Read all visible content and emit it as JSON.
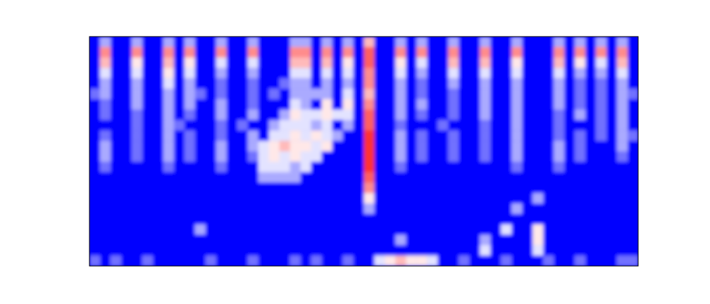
{
  "chart_data": {
    "type": "heatmap",
    "tick_labels": false,
    "zlim": [
      0,
      9
    ],
    "cells": [
      [
        0,
        3,
        0,
        0,
        3,
        0,
        0,
        3,
        0,
        3,
        0,
        0,
        3,
        0,
        0,
        3,
        0,
        0,
        0,
        3,
        3,
        0,
        3,
        0,
        3,
        0,
        6,
        0,
        0,
        3,
        0,
        3,
        0,
        0,
        3,
        0,
        0,
        3,
        0,
        0,
        3,
        0,
        0,
        0,
        3,
        0,
        3,
        0,
        3,
        0,
        3,
        0
      ],
      [
        0,
        7,
        0,
        0,
        7,
        0,
        0,
        7,
        0,
        7,
        0,
        0,
        7,
        0,
        0,
        7,
        0,
        0,
        0,
        7,
        7,
        0,
        7,
        0,
        7,
        0,
        8,
        0,
        0,
        7,
        0,
        7,
        0,
        0,
        7,
        0,
        0,
        7,
        0,
        0,
        7,
        0,
        0,
        0,
        7,
        0,
        7,
        0,
        7,
        0,
        7,
        0
      ],
      [
        0,
        6,
        0,
        0,
        5,
        0,
        0,
        6,
        0,
        5,
        0,
        0,
        4,
        0,
        0,
        4,
        0,
        0,
        0,
        6,
        6,
        0,
        6,
        0,
        5,
        0,
        8,
        0,
        0,
        5,
        0,
        4,
        0,
        0,
        6,
        0,
        0,
        6,
        0,
        0,
        5,
        0,
        0,
        0,
        6,
        0,
        5,
        0,
        4,
        0,
        6,
        0
      ],
      [
        0,
        4,
        0,
        0,
        4,
        0,
        0,
        5,
        0,
        4,
        0,
        0,
        3,
        0,
        0,
        3,
        0,
        0,
        0,
        4,
        4,
        0,
        4,
        0,
        4,
        0,
        7,
        0,
        0,
        4,
        0,
        3,
        0,
        0,
        4,
        0,
        0,
        4,
        0,
        0,
        4,
        0,
        0,
        0,
        4,
        0,
        3,
        0,
        3,
        0,
        4,
        0
      ],
      [
        0,
        3,
        0,
        0,
        3,
        0,
        0,
        4,
        0,
        3,
        0,
        0,
        2,
        0,
        0,
        2,
        0,
        0,
        2,
        3,
        3,
        0,
        3,
        0,
        3,
        0,
        7,
        0,
        0,
        3,
        0,
        2,
        0,
        0,
        3,
        0,
        0,
        3,
        0,
        0,
        3,
        0,
        0,
        0,
        3,
        0,
        2,
        0,
        2,
        0,
        3,
        0
      ],
      [
        2,
        3,
        0,
        0,
        3,
        0,
        0,
        3,
        0,
        3,
        2,
        0,
        2,
        0,
        0,
        2,
        0,
        2,
        0,
        3,
        3,
        3,
        3,
        0,
        4,
        0,
        6,
        0,
        0,
        3,
        0,
        2,
        0,
        0,
        2,
        0,
        0,
        3,
        0,
        0,
        3,
        0,
        0,
        0,
        3,
        0,
        2,
        0,
        2,
        0,
        3,
        2
      ],
      [
        0,
        2,
        0,
        0,
        3,
        0,
        0,
        3,
        0,
        3,
        0,
        0,
        3,
        0,
        0,
        2,
        0,
        0,
        0,
        4,
        3,
        0,
        5,
        0,
        5,
        0,
        7,
        0,
        0,
        3,
        0,
        3,
        0,
        0,
        2,
        0,
        0,
        3,
        0,
        0,
        3,
        0,
        0,
        0,
        3,
        0,
        2,
        0,
        2,
        0,
        3,
        0
      ],
      [
        0,
        2,
        0,
        0,
        2,
        0,
        0,
        3,
        0,
        2,
        0,
        0,
        3,
        0,
        0,
        3,
        0,
        0,
        3,
        5,
        4,
        4,
        5,
        4,
        4,
        0,
        8,
        0,
        0,
        3,
        0,
        2,
        0,
        0,
        2,
        0,
        0,
        3,
        0,
        0,
        3,
        0,
        0,
        0,
        2,
        0,
        3,
        0,
        2,
        0,
        3,
        0
      ],
      [
        0,
        0,
        0,
        0,
        2,
        0,
        0,
        3,
        2,
        0,
        0,
        0,
        2,
        0,
        2,
        0,
        0,
        3,
        4,
        4,
        4,
        3,
        4,
        0,
        3,
        0,
        8,
        0,
        0,
        2,
        0,
        0,
        0,
        2,
        0,
        0,
        0,
        2,
        0,
        0,
        3,
        0,
        0,
        0,
        2,
        0,
        0,
        0,
        2,
        0,
        3,
        0
      ],
      [
        0,
        2,
        0,
        0,
        2,
        0,
        0,
        3,
        0,
        2,
        0,
        0,
        2,
        0,
        0,
        3,
        0,
        4,
        4,
        5,
        4,
        5,
        4,
        3,
        0,
        0,
        9,
        0,
        0,
        3,
        0,
        2,
        0,
        0,
        2,
        0,
        0,
        2,
        0,
        0,
        3,
        0,
        0,
        0,
        2,
        0,
        2,
        0,
        2,
        0,
        3,
        2
      ],
      [
        0,
        3,
        0,
        0,
        2,
        0,
        0,
        3,
        0,
        2,
        0,
        0,
        3,
        0,
        0,
        3,
        4,
        5,
        6,
        5,
        5,
        4,
        5,
        0,
        0,
        0,
        9,
        0,
        0,
        3,
        0,
        2,
        0,
        0,
        2,
        0,
        0,
        2,
        0,
        0,
        3,
        0,
        0,
        0,
        3,
        0,
        2,
        0,
        0,
        0,
        3,
        0
      ],
      [
        0,
        3,
        0,
        0,
        2,
        0,
        0,
        3,
        0,
        2,
        0,
        0,
        3,
        0,
        0,
        2,
        4,
        5,
        4,
        5,
        4,
        4,
        0,
        0,
        0,
        0,
        9,
        0,
        0,
        3,
        0,
        2,
        0,
        0,
        2,
        0,
        0,
        2,
        0,
        0,
        3,
        0,
        0,
        0,
        3,
        0,
        2,
        0,
        0,
        0,
        2,
        0
      ],
      [
        0,
        2,
        0,
        0,
        0,
        0,
        0,
        2,
        0,
        0,
        0,
        0,
        2,
        0,
        0,
        0,
        4,
        4,
        4,
        3,
        4,
        0,
        0,
        0,
        0,
        0,
        9,
        0,
        0,
        2,
        0,
        0,
        0,
        0,
        0,
        0,
        0,
        0,
        0,
        0,
        2,
        0,
        0,
        0,
        2,
        0,
        0,
        0,
        0,
        0,
        0,
        0
      ],
      [
        0,
        0,
        0,
        0,
        0,
        0,
        0,
        0,
        0,
        0,
        0,
        0,
        0,
        0,
        0,
        0,
        3,
        3,
        3,
        3,
        0,
        0,
        0,
        0,
        0,
        0,
        8,
        0,
        0,
        0,
        0,
        0,
        0,
        0,
        0,
        0,
        0,
        0,
        0,
        0,
        0,
        0,
        0,
        0,
        0,
        0,
        0,
        0,
        0,
        0,
        0,
        0
      ],
      [
        0,
        0,
        0,
        0,
        0,
        0,
        0,
        0,
        0,
        0,
        0,
        0,
        0,
        0,
        0,
        0,
        0,
        0,
        0,
        0,
        0,
        0,
        0,
        0,
        0,
        0,
        7,
        0,
        0,
        0,
        0,
        0,
        0,
        0,
        0,
        0,
        0,
        0,
        0,
        0,
        0,
        0,
        0,
        0,
        0,
        0,
        0,
        0,
        0,
        0,
        0,
        0
      ],
      [
        0,
        0,
        0,
        0,
        0,
        0,
        0,
        0,
        0,
        0,
        0,
        0,
        0,
        0,
        0,
        0,
        0,
        0,
        0,
        0,
        0,
        0,
        0,
        0,
        0,
        0,
        5,
        0,
        0,
        0,
        0,
        0,
        0,
        0,
        0,
        0,
        0,
        0,
        0,
        0,
        0,
        0,
        3,
        0,
        0,
        0,
        0,
        0,
        0,
        0,
        0,
        0
      ],
      [
        0,
        0,
        0,
        0,
        0,
        0,
        0,
        0,
        0,
        0,
        0,
        0,
        0,
        0,
        0,
        0,
        0,
        0,
        0,
        0,
        0,
        0,
        0,
        0,
        0,
        0,
        3,
        0,
        0,
        0,
        0,
        0,
        0,
        0,
        0,
        0,
        0,
        0,
        0,
        0,
        3,
        0,
        0,
        0,
        0,
        0,
        0,
        0,
        0,
        0,
        0,
        0
      ],
      [
        0,
        0,
        0,
        0,
        0,
        0,
        0,
        0,
        0,
        0,
        0,
        0,
        0,
        0,
        0,
        0,
        0,
        0,
        0,
        0,
        0,
        0,
        0,
        0,
        0,
        0,
        0,
        0,
        0,
        0,
        0,
        0,
        0,
        0,
        0,
        0,
        0,
        0,
        0,
        0,
        0,
        0,
        0,
        0,
        0,
        0,
        0,
        0,
        0,
        0,
        0,
        0
      ],
      [
        0,
        0,
        0,
        0,
        0,
        0,
        0,
        0,
        0,
        0,
        3,
        0,
        0,
        0,
        0,
        0,
        0,
        0,
        0,
        0,
        0,
        0,
        0,
        0,
        0,
        0,
        0,
        0,
        0,
        0,
        0,
        0,
        0,
        0,
        0,
        0,
        0,
        0,
        0,
        4,
        0,
        0,
        5,
        0,
        0,
        0,
        0,
        0,
        0,
        0,
        0,
        0
      ],
      [
        0,
        0,
        0,
        0,
        0,
        0,
        0,
        0,
        0,
        0,
        0,
        0,
        0,
        0,
        0,
        0,
        0,
        0,
        0,
        0,
        0,
        0,
        0,
        0,
        0,
        0,
        0,
        0,
        0,
        3,
        0,
        0,
        0,
        0,
        0,
        0,
        0,
        3,
        0,
        0,
        0,
        0,
        5,
        0,
        0,
        0,
        0,
        0,
        0,
        0,
        0,
        0
      ],
      [
        0,
        0,
        0,
        0,
        0,
        0,
        0,
        0,
        0,
        0,
        0,
        0,
        0,
        0,
        0,
        0,
        0,
        0,
        0,
        0,
        0,
        0,
        0,
        0,
        0,
        0,
        0,
        0,
        0,
        0,
        0,
        0,
        0,
        0,
        0,
        0,
        0,
        4,
        0,
        0,
        0,
        0,
        4,
        0,
        0,
        0,
        0,
        0,
        0,
        0,
        0,
        0
      ],
      [
        2,
        0,
        2,
        0,
        0,
        2,
        0,
        0,
        0,
        0,
        0,
        2,
        0,
        0,
        0,
        2,
        0,
        0,
        0,
        2,
        0,
        2,
        0,
        0,
        2,
        0,
        0,
        4,
        5,
        6,
        5,
        5,
        4,
        0,
        0,
        2,
        0,
        0,
        0,
        2,
        0,
        0,
        0,
        2,
        0,
        0,
        2,
        0,
        0,
        0,
        2,
        2
      ]
    ]
  }
}
